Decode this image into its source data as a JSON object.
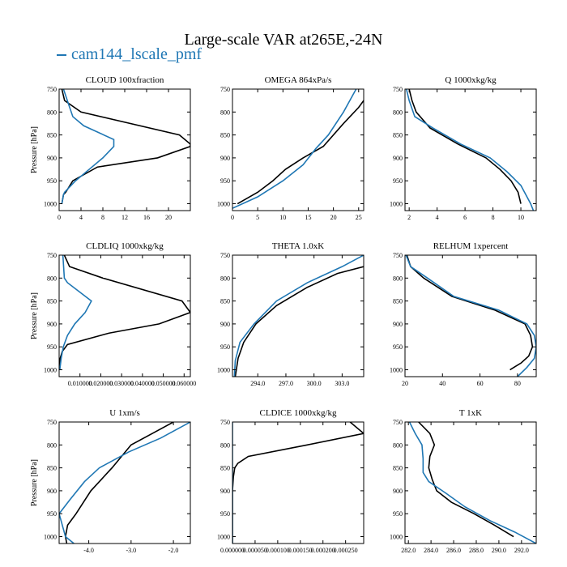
{
  "title": "Large-scale VAR at265E,-24N",
  "legend": {
    "label": "cam144_lscale_pmf",
    "color": "#1f77b4"
  },
  "colors": {
    "black": "#000000",
    "blue": "#1f77b4"
  },
  "chart_data": [
    {
      "type": "line",
      "title": "CLOUD 100xfraction",
      "ylabel": "Pressure [hPa]",
      "ylim": [
        1015,
        750
      ],
      "yticks": [
        750,
        800,
        850,
        900,
        950,
        1000
      ],
      "ytick_labels": [
        "750",
        "800",
        "850",
        "900",
        "950",
        "1000"
      ],
      "xlim": [
        0,
        24
      ],
      "xticks": [
        0,
        4,
        8,
        12,
        16,
        20
      ],
      "xtick_labels": [
        "0",
        "4",
        "8",
        "12",
        "16",
        "20"
      ],
      "series": [
        {
          "color": "#000000",
          "x": [
            0.5,
            0.8,
            1.2,
            2.5,
            7.0,
            18.0,
            24.0,
            24.0,
            22.0,
            4.0,
            1.0,
            0.5
          ],
          "y": [
            1000,
            980,
            975,
            950,
            920,
            900,
            875,
            870,
            850,
            800,
            775,
            750
          ]
        },
        {
          "color": "#1f77b4",
          "x": [
            0.5,
            0.8,
            1.0,
            3.0,
            5.5,
            8.0,
            10.0,
            10.0,
            4.5,
            2.5,
            1.5,
            0.8
          ],
          "y": [
            1000,
            980,
            975,
            950,
            925,
            900,
            875,
            860,
            830,
            810,
            775,
            750
          ]
        }
      ]
    },
    {
      "type": "line",
      "title": "OMEGA 864xPa/s",
      "ylabel": "",
      "ylim": [
        1015,
        750
      ],
      "yticks": [
        750,
        800,
        850,
        900,
        950,
        1000
      ],
      "ytick_labels": [
        "750",
        "800",
        "850",
        "900",
        "950",
        "1000"
      ],
      "xlim": [
        0,
        26
      ],
      "xticks": [
        0,
        5,
        10,
        15,
        20,
        25
      ],
      "xtick_labels": [
        "0",
        "5",
        "10",
        "15",
        "20",
        "25"
      ],
      "series": [
        {
          "color": "#000000",
          "x": [
            1.0,
            5.0,
            8.0,
            10.5,
            14.0,
            18.0,
            22.0,
            25.0,
            26.0
          ],
          "y": [
            1000,
            975,
            950,
            925,
            900,
            875,
            825,
            790,
            775
          ]
        },
        {
          "color": "#1f77b4",
          "x": [
            0.0,
            5.0,
            10.0,
            14.0,
            16.5,
            19.0,
            22.0,
            24.5
          ],
          "y": [
            1010,
            985,
            950,
            915,
            880,
            850,
            800,
            750
          ]
        }
      ]
    },
    {
      "type": "line",
      "title": "Q 1000xkg/kg",
      "ylabel": "",
      "ylim": [
        1015,
        750
      ],
      "yticks": [
        750,
        800,
        850,
        900,
        950,
        1000
      ],
      "ytick_labels": [
        "750",
        "800",
        "850",
        "900",
        "950",
        "1000"
      ],
      "xlim": [
        1.7,
        11.1
      ],
      "xticks": [
        2,
        4,
        6,
        8,
        10
      ],
      "xtick_labels": [
        "2",
        "4",
        "6",
        "8",
        "10"
      ],
      "series": [
        {
          "color": "#000000",
          "x": [
            10.0,
            9.8,
            9.3,
            8.5,
            7.5,
            5.5,
            3.5,
            2.5,
            2.2,
            2.0
          ],
          "y": [
            1000,
            975,
            950,
            925,
            900,
            870,
            835,
            800,
            775,
            750
          ]
        },
        {
          "color": "#1f77b4",
          "x": [
            10.9,
            10.7,
            10.0,
            9.0,
            7.8,
            5.7,
            3.7,
            2.4,
            2.0,
            1.8
          ],
          "y": [
            1015,
            1000,
            960,
            930,
            900,
            870,
            835,
            810,
            775,
            750
          ]
        }
      ]
    },
    {
      "type": "line",
      "title": "CLDLIQ 1000xkg/kg",
      "ylabel": "Pressure [hPa]",
      "ylim": [
        1015,
        750
      ],
      "yticks": [
        750,
        800,
        850,
        900,
        950,
        1000
      ],
      "ytick_labels": [
        "750",
        "800",
        "850",
        "900",
        "950",
        "1000"
      ],
      "xlim": [
        0,
        0.063
      ],
      "xticks": [
        0.01,
        0.02,
        0.03,
        0.04,
        0.05,
        0.06
      ],
      "xtick_labels": [
        "0.010000",
        "0.020000",
        "0.030000",
        "0.040000",
        "0.050000",
        "0.060000"
      ],
      "series": [
        {
          "color": "#000000",
          "x": [
            0.0003,
            0.0005,
            0.0015,
            0.004,
            0.024,
            0.048,
            0.063,
            0.059,
            0.021,
            0.005,
            0.0025
          ],
          "y": [
            1000,
            975,
            960,
            945,
            920,
            900,
            875,
            850,
            800,
            775,
            750
          ]
        },
        {
          "color": "#1f77b4",
          "x": [
            0.0003,
            0.001,
            0.002,
            0.004,
            0.0075,
            0.0125,
            0.0155,
            0.004,
            0.0025,
            0.0018
          ],
          "y": [
            1000,
            975,
            950,
            925,
            900,
            875,
            850,
            810,
            800,
            750
          ]
        }
      ]
    },
    {
      "type": "line",
      "title": "THETA 1.0xK",
      "ylabel": "",
      "ylim": [
        1015,
        750
      ],
      "yticks": [
        750,
        800,
        850,
        900,
        950,
        1000
      ],
      "ytick_labels": [
        "750",
        "800",
        "850",
        "900",
        "950",
        "1000"
      ],
      "xlim": [
        291.3,
        305.3
      ],
      "xticks": [
        294,
        297,
        300,
        303
      ],
      "xtick_labels": [
        "294.0",
        "297.0",
        "300.0",
        "303.0"
      ],
      "series": [
        {
          "color": "#000000",
          "x": [
            291.6,
            291.9,
            292.5,
            293.8,
            296.0,
            299.3,
            302.5,
            305.3
          ],
          "y": [
            1015,
            975,
            940,
            900,
            860,
            820,
            790,
            775
          ]
        },
        {
          "color": "#1f77b4",
          "x": [
            291.5,
            291.6,
            292.1,
            293.6,
            296.0,
            299.3,
            303.0,
            305.3
          ],
          "y": [
            1015,
            980,
            940,
            900,
            850,
            810,
            775,
            750
          ]
        }
      ]
    },
    {
      "type": "line",
      "title": "RELHUM 1xpercent",
      "ylabel": "",
      "ylim": [
        1015,
        750
      ],
      "yticks": [
        750,
        800,
        850,
        900,
        950,
        1000
      ],
      "ytick_labels": [
        "750",
        "800",
        "850",
        "900",
        "950",
        "1000"
      ],
      "xlim": [
        20,
        90
      ],
      "xticks": [
        20,
        40,
        60,
        80
      ],
      "xtick_labels": [
        "20",
        "40",
        "60",
        "80"
      ],
      "series": [
        {
          "color": "#000000",
          "x": [
            76.0,
            82.0,
            86.0,
            88.0,
            87.0,
            84.0,
            68.0,
            45.0,
            30.0,
            23.0,
            21.0
          ],
          "y": [
            1000,
            985,
            970,
            950,
            925,
            900,
            870,
            840,
            800,
            775,
            750
          ]
        },
        {
          "color": "#1f77b4",
          "x": [
            80.0,
            85.0,
            89.0,
            90.0,
            89.0,
            85.0,
            70.0,
            46.0,
            32.0,
            23.0,
            20.5
          ],
          "y": [
            1015,
            995,
            975,
            950,
            925,
            900,
            870,
            840,
            800,
            775,
            750
          ]
        }
      ]
    },
    {
      "type": "line",
      "title": "U 1xm/s",
      "ylabel": "Pressure [hPa]",
      "ylim": [
        1015,
        750
      ],
      "yticks": [
        750,
        800,
        850,
        900,
        950,
        1000
      ],
      "ytick_labels": [
        "750",
        "800",
        "850",
        "900",
        "950",
        "1000"
      ],
      "xlim": [
        -4.7,
        -1.6
      ],
      "xticks": [
        -4,
        -3,
        -2
      ],
      "xtick_labels": [
        "-4.0",
        "-3.0",
        "-2.0"
      ],
      "series": [
        {
          "color": "#000000",
          "x": [
            -4.52,
            -4.55,
            -4.5,
            -4.3,
            -3.95,
            -3.45,
            -3.0,
            -2.5,
            -2.0
          ],
          "y": [
            1015,
            1000,
            975,
            950,
            900,
            850,
            800,
            775,
            750
          ]
        },
        {
          "color": "#1f77b4",
          "x": [
            -4.35,
            -4.55,
            -4.7,
            -4.45,
            -4.1,
            -3.75,
            -3.05,
            -2.3,
            -1.6
          ],
          "y": [
            1015,
            1000,
            950,
            920,
            880,
            850,
            815,
            785,
            750
          ]
        }
      ]
    },
    {
      "type": "line",
      "title": "CLDICE 1000xkg/kg",
      "ylabel": "",
      "ylim": [
        1015,
        750
      ],
      "yticks": [
        750,
        800,
        850,
        900,
        950,
        1000
      ],
      "ytick_labels": [
        "750",
        "800",
        "850",
        "900",
        "950",
        "1000"
      ],
      "xlim": [
        0,
        0.00029
      ],
      "xticks": [
        0,
        5e-05,
        0.0001,
        0.00015,
        0.0002,
        0.00025
      ],
      "xtick_labels": [
        "0.000000",
        "0.000050",
        "0.000100",
        "0.000150",
        "0.000200",
        "0.000250"
      ],
      "series": [
        {
          "color": "#000000",
          "x": [
            0.0,
            0.0,
            0.0,
            2e-06,
            5e-06,
            1.2e-05,
            3.5e-05,
            0.000165,
            0.00029,
            0.00026
          ],
          "y": [
            1015,
            950,
            900,
            870,
            850,
            840,
            825,
            800,
            775,
            750
          ]
        },
        {
          "color": "#1f77b4",
          "x": [
            0.0,
            0.0,
            0.0
          ],
          "y": [
            1015,
            880,
            750
          ]
        }
      ]
    },
    {
      "type": "line",
      "title": "T 1xK",
      "ylabel": "",
      "ylim": [
        1015,
        750
      ],
      "yticks": [
        750,
        800,
        850,
        900,
        950,
        1000
      ],
      "ytick_labels": [
        "750",
        "800",
        "850",
        "900",
        "950",
        "1000"
      ],
      "xlim": [
        281.7,
        293.3
      ],
      "xticks": [
        282,
        284,
        286,
        288,
        290,
        292
      ],
      "xtick_labels": [
        "282.0",
        "284.0",
        "286.0",
        "288.0",
        "290.0",
        "292.0"
      ],
      "series": [
        {
          "color": "#000000",
          "x": [
            291.3,
            289.6,
            287.8,
            285.8,
            284.5,
            284.1,
            283.8,
            283.9,
            284.3,
            283.9,
            282.9
          ],
          "y": [
            1000,
            975,
            950,
            925,
            900,
            875,
            850,
            825,
            800,
            775,
            750
          ]
        },
        {
          "color": "#1f77b4",
          "x": [
            293.3,
            291.4,
            289.2,
            287.0,
            285.3,
            283.8,
            283.3,
            283.3,
            283.2,
            282.6,
            282.1
          ],
          "y": [
            1015,
            990,
            965,
            935,
            905,
            880,
            860,
            830,
            800,
            775,
            750
          ]
        }
      ]
    }
  ]
}
